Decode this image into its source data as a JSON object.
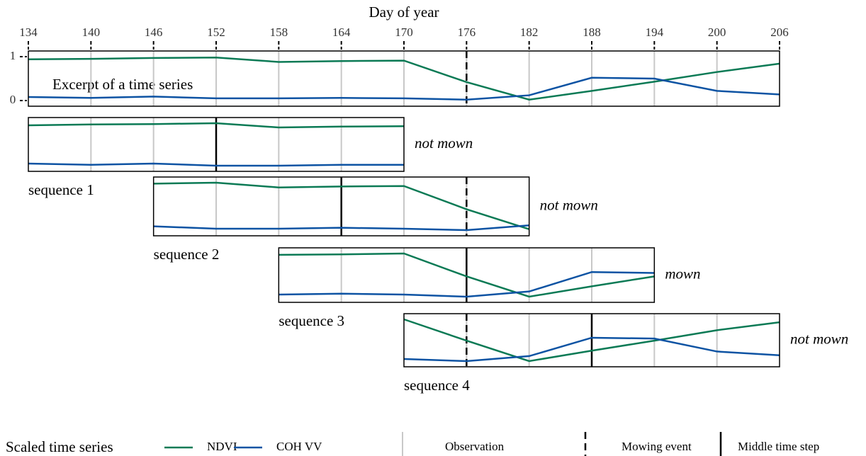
{
  "chart_data": {
    "type": "line",
    "x_label": "Day of year",
    "xlim": [
      134,
      206
    ],
    "xticks": [
      134,
      140,
      146,
      152,
      158,
      164,
      170,
      176,
      182,
      188,
      194,
      200,
      206
    ],
    "ylim": [
      0,
      1
    ],
    "yticks": [
      0,
      1
    ],
    "x": [
      134,
      140,
      146,
      152,
      158,
      164,
      170,
      176,
      182,
      188,
      194,
      200,
      206
    ],
    "series": [
      {
        "name": "NDVI",
        "color": "#0b7a55",
        "values": [
          0.94,
          0.95,
          0.97,
          0.98,
          0.88,
          0.9,
          0.91,
          0.42,
          0.02,
          0.22,
          0.43,
          0.65,
          0.84
        ]
      },
      {
        "name": "COH VV",
        "color": "#0d53a3",
        "values": [
          0.08,
          0.06,
          0.09,
          0.05,
          0.05,
          0.06,
          0.05,
          0.02,
          0.12,
          0.52,
          0.5,
          0.22,
          0.14
        ]
      }
    ],
    "annotation": "Excerpt of a time series",
    "mowing_day": 176,
    "sequences": [
      {
        "label": "sequence 1",
        "status": "not mown",
        "middle": 152,
        "x": [
          134,
          140,
          146,
          152,
          158,
          164,
          170
        ],
        "series": [
          {
            "values": [
              0.95,
              0.97,
              0.98,
              1.0,
              0.9,
              0.92,
              0.93
            ]
          },
          {
            "values": [
              0.05,
              0.02,
              0.05,
              0.0,
              0.0,
              0.02,
              0.02
            ]
          }
        ]
      },
      {
        "label": "sequence 2",
        "status": "not mown",
        "middle": 164,
        "x": [
          146,
          152,
          158,
          164,
          170,
          176,
          182
        ],
        "series": [
          {
            "values": [
              0.98,
              1.0,
              0.9,
              0.92,
              0.93,
              0.44,
              0.02
            ]
          },
          {
            "values": [
              0.08,
              0.03,
              0.03,
              0.05,
              0.03,
              0.0,
              0.1
            ]
          }
        ]
      },
      {
        "label": "sequence 3",
        "status": "mown",
        "middle": 176,
        "x": [
          158,
          164,
          170,
          176,
          182,
          188,
          194
        ],
        "series": [
          {
            "values": [
              0.97,
              0.98,
              1.0,
              0.47,
              0.0,
              0.24,
              0.47
            ]
          },
          {
            "values": [
              0.05,
              0.07,
              0.05,
              0.0,
              0.12,
              0.57,
              0.55
            ]
          }
        ]
      },
      {
        "label": "sequence 4",
        "status": "not mown",
        "middle": 188,
        "x": [
          170,
          176,
          182,
          188,
          194,
          200,
          206
        ],
        "series": [
          {
            "values": [
              1.0,
              0.49,
              0.0,
              0.25,
              0.49,
              0.74,
              0.93
            ]
          },
          {
            "values": [
              0.05,
              0.0,
              0.12,
              0.56,
              0.54,
              0.23,
              0.14
            ]
          }
        ]
      }
    ],
    "legend_title": "Scaled time series",
    "markers": {
      "observation": "Observation",
      "mowing_event": "Mowing event",
      "middle_time_step": "Middle time step"
    }
  }
}
